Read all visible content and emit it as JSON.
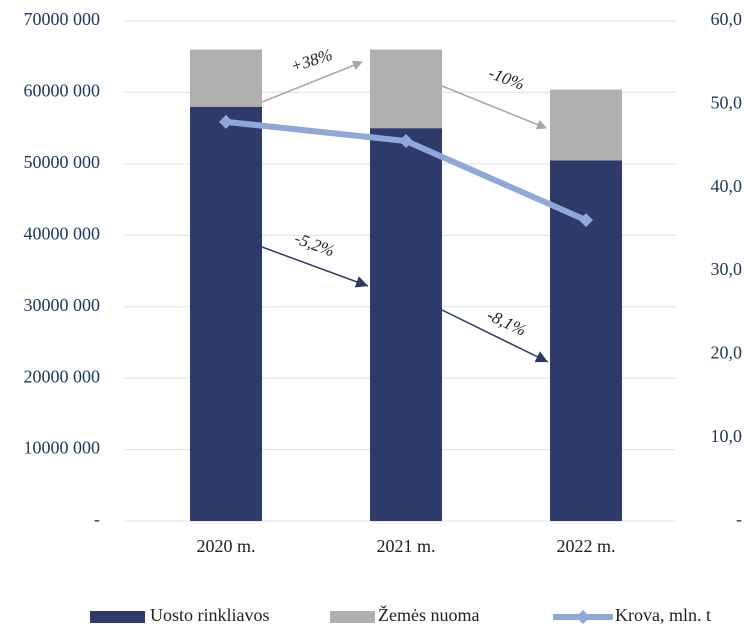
{
  "chart_data": {
    "type": "bar",
    "stacked": true,
    "categories": [
      "2020 m.",
      "2021 m.",
      "2022 m."
    ],
    "series": [
      {
        "name": "Uosto rinkliavos",
        "color": "#2e3a6a",
        "values": [
          58000000,
          55000000,
          50500000
        ]
      },
      {
        "name": "Žemės nuoma",
        "color": "#b0b0b0",
        "values": [
          8000000,
          11000000,
          9900000
        ]
      },
      {
        "name": "Krova, mln. t",
        "color": "#8fa8d8",
        "type": "line",
        "axis": "y2",
        "values": [
          47.9,
          45.6,
          36.1
        ]
      }
    ],
    "ylim": [
      0,
      70000000
    ],
    "yticks": [
      {
        "value": 0,
        "label": "-"
      },
      {
        "value": 10000000,
        "label": "10000 000"
      },
      {
        "value": 20000000,
        "label": "20000 000"
      },
      {
        "value": 30000000,
        "label": "30000 000"
      },
      {
        "value": 40000000,
        "label": "40000 000"
      },
      {
        "value": 50000000,
        "label": "50000 000"
      },
      {
        "value": 60000000,
        "label": "60000 000"
      },
      {
        "value": 70000000,
        "label": "70000 000"
      }
    ],
    "y2lim": [
      0,
      60
    ],
    "y2ticks": [
      {
        "value": 0,
        "label": "-"
      },
      {
        "value": 10,
        "label": "10,0"
      },
      {
        "value": 20,
        "label": "20,0"
      },
      {
        "value": 30,
        "label": "30,0"
      },
      {
        "value": 40,
        "label": "40,0"
      },
      {
        "value": 50,
        "label": "50,0"
      },
      {
        "value": 60,
        "label": "60,0"
      }
    ],
    "grid": true,
    "legend": "bottom",
    "annotations": [
      "+38%",
      "-10%",
      "-5,2%",
      "-8,1%"
    ]
  }
}
